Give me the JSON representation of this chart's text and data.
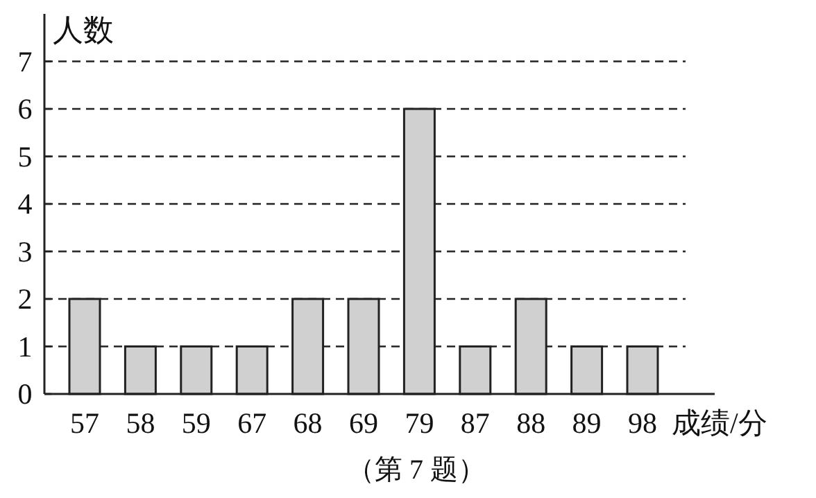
{
  "chart_data": {
    "type": "bar",
    "ylabel": "人数",
    "xlabel": "成绩/分",
    "annotations": [
      "（第 7 题）"
    ],
    "categories": [
      "57",
      "58",
      "59",
      "67",
      "68",
      "69",
      "79",
      "87",
      "88",
      "89",
      "98"
    ],
    "values": [
      2,
      1,
      1,
      1,
      2,
      2,
      6,
      1,
      2,
      1,
      1
    ],
    "color": "#d0d0d0",
    "ylim": [
      0,
      8
    ],
    "yticks": [
      0,
      1,
      2,
      3,
      4,
      5,
      6,
      7
    ],
    "grid": "y"
  }
}
